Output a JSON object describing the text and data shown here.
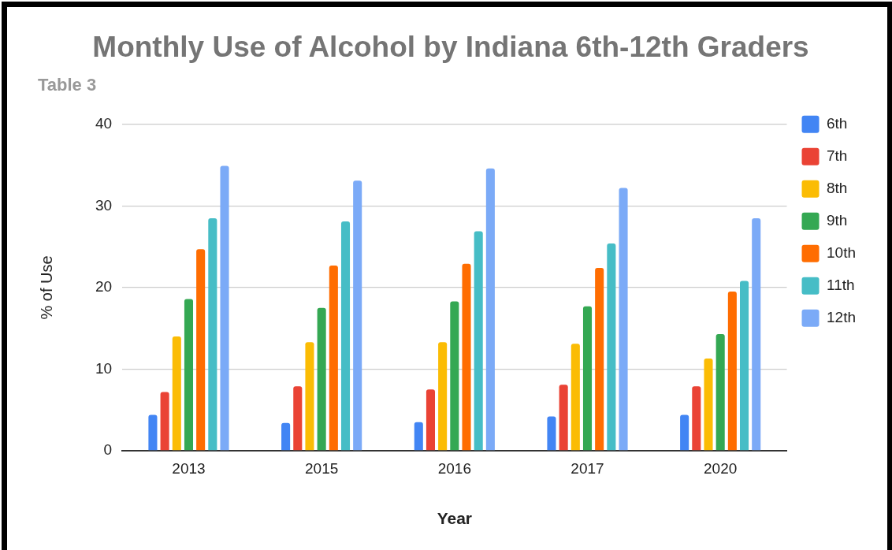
{
  "chart_data": {
    "type": "bar",
    "title": "Monthly Use of Alcohol by Indiana 6th-12th Graders",
    "subtitle": "Table 3",
    "xlabel": "Year",
    "ylabel": "% of Use",
    "categories": [
      "2013",
      "2015",
      "2016",
      "2017",
      "2020"
    ],
    "series": [
      {
        "name": "6th",
        "color": "#4285f4",
        "values": [
          4.4,
          3.4,
          3.5,
          4.2,
          4.4
        ]
      },
      {
        "name": "7th",
        "color": "#ea4335",
        "values": [
          7.2,
          7.9,
          7.5,
          8.1,
          7.9
        ]
      },
      {
        "name": "8th",
        "color": "#fbbc04",
        "values": [
          14.0,
          13.3,
          13.3,
          13.1,
          11.3
        ]
      },
      {
        "name": "9th",
        "color": "#34a853",
        "values": [
          18.6,
          17.5,
          18.3,
          17.7,
          14.3
        ]
      },
      {
        "name": "10th",
        "color": "#ff6d01",
        "values": [
          24.7,
          22.7,
          22.9,
          22.4,
          19.5
        ]
      },
      {
        "name": "11th",
        "color": "#46bdc6",
        "values": [
          28.5,
          28.1,
          26.9,
          25.4,
          20.8
        ]
      },
      {
        "name": "12th",
        "color": "#7baaf7",
        "values": [
          34.9,
          33.1,
          34.6,
          32.2,
          28.5
        ]
      }
    ],
    "ylim": [
      0,
      40
    ],
    "yticks": [
      0,
      10,
      20,
      30,
      40
    ],
    "grid": "y",
    "legend": "top right"
  }
}
